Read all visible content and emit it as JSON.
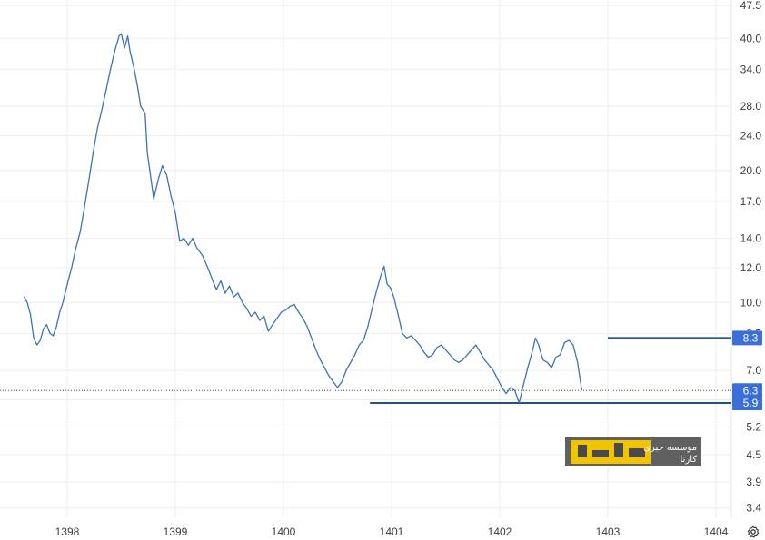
{
  "chart_data": {
    "type": "line",
    "y_scale": "log",
    "ylim": [
      3.3,
      48
    ],
    "y_ticks": [
      "47.5",
      "40.0",
      "34.0",
      "28.0",
      "24.0",
      "20.0",
      "17.0",
      "14.0",
      "12.0",
      "10.0",
      "8.5",
      "7.0",
      "6.0",
      "5.2",
      "4.5",
      "3.9",
      "3.4"
    ],
    "x_ticks": [
      "1398",
      "1399",
      "1400",
      "1401",
      "1402",
      "1403",
      "1404"
    ],
    "x_range": [
      1397.6,
      1404.1
    ],
    "grid": true,
    "series": [
      {
        "color": "#3d72b4",
        "points": [
          [
            1397.6,
            10.3
          ],
          [
            1397.63,
            10.0
          ],
          [
            1397.66,
            9.4
          ],
          [
            1397.69,
            8.3
          ],
          [
            1397.72,
            8.0
          ],
          [
            1397.75,
            8.2
          ],
          [
            1397.78,
            8.7
          ],
          [
            1397.81,
            8.9
          ],
          [
            1397.84,
            8.5
          ],
          [
            1397.87,
            8.4
          ],
          [
            1397.9,
            8.8
          ],
          [
            1397.93,
            9.5
          ],
          [
            1397.96,
            10.0
          ],
          [
            1398.0,
            11.0
          ],
          [
            1398.04,
            12.0
          ],
          [
            1398.08,
            13.3
          ],
          [
            1398.12,
            14.5
          ],
          [
            1398.16,
            16.5
          ],
          [
            1398.2,
            19.0
          ],
          [
            1398.24,
            22.0
          ],
          [
            1398.28,
            25.0
          ],
          [
            1398.32,
            27.5
          ],
          [
            1398.36,
            30.5
          ],
          [
            1398.4,
            34.0
          ],
          [
            1398.44,
            37.5
          ],
          [
            1398.48,
            40.5
          ],
          [
            1398.5,
            41.0
          ],
          [
            1398.53,
            38.0
          ],
          [
            1398.56,
            40.5
          ],
          [
            1398.58,
            37.5
          ],
          [
            1398.62,
            34.0
          ],
          [
            1398.65,
            31.0
          ],
          [
            1398.68,
            28.0
          ],
          [
            1398.72,
            27.0
          ],
          [
            1398.74,
            22.0
          ],
          [
            1398.77,
            19.5
          ],
          [
            1398.8,
            17.2
          ],
          [
            1398.84,
            19.0
          ],
          [
            1398.88,
            20.5
          ],
          [
            1398.92,
            19.5
          ],
          [
            1398.96,
            17.5
          ],
          [
            1399.0,
            16.0
          ],
          [
            1399.04,
            13.8
          ],
          [
            1399.08,
            14.0
          ],
          [
            1399.12,
            13.5
          ],
          [
            1399.16,
            14.0
          ],
          [
            1399.2,
            13.3
          ],
          [
            1399.25,
            12.8
          ],
          [
            1399.3,
            12.0
          ],
          [
            1399.34,
            11.3
          ],
          [
            1399.38,
            10.7
          ],
          [
            1399.42,
            11.2
          ],
          [
            1399.46,
            10.5
          ],
          [
            1399.5,
            10.9
          ],
          [
            1399.54,
            10.3
          ],
          [
            1399.58,
            10.5
          ],
          [
            1399.62,
            10.0
          ],
          [
            1399.66,
            9.7
          ],
          [
            1399.7,
            9.3
          ],
          [
            1399.74,
            9.5
          ],
          [
            1399.78,
            9.1
          ],
          [
            1399.82,
            9.3
          ],
          [
            1399.86,
            8.6
          ],
          [
            1399.9,
            8.9
          ],
          [
            1399.94,
            9.2
          ],
          [
            1399.98,
            9.5
          ],
          [
            1400.02,
            9.6
          ],
          [
            1400.06,
            9.8
          ],
          [
            1400.1,
            9.9
          ],
          [
            1400.14,
            9.5
          ],
          [
            1400.18,
            9.2
          ],
          [
            1400.22,
            8.8
          ],
          [
            1400.26,
            8.3
          ],
          [
            1400.3,
            7.8
          ],
          [
            1400.34,
            7.4
          ],
          [
            1400.38,
            7.1
          ],
          [
            1400.42,
            6.8
          ],
          [
            1400.46,
            6.6
          ],
          [
            1400.5,
            6.4
          ],
          [
            1400.54,
            6.6
          ],
          [
            1400.58,
            7.0
          ],
          [
            1400.62,
            7.3
          ],
          [
            1400.66,
            7.6
          ],
          [
            1400.7,
            8.0
          ],
          [
            1400.74,
            8.2
          ],
          [
            1400.78,
            8.8
          ],
          [
            1400.82,
            9.7
          ],
          [
            1400.86,
            10.6
          ],
          [
            1400.9,
            11.5
          ],
          [
            1400.93,
            12.1
          ],
          [
            1400.96,
            11.0
          ],
          [
            1400.99,
            10.8
          ],
          [
            1401.02,
            10.3
          ],
          [
            1401.06,
            9.4
          ],
          [
            1401.1,
            8.5
          ],
          [
            1401.14,
            8.3
          ],
          [
            1401.18,
            8.4
          ],
          [
            1401.22,
            8.2
          ],
          [
            1401.26,
            8.0
          ],
          [
            1401.3,
            7.7
          ],
          [
            1401.34,
            7.5
          ],
          [
            1401.38,
            7.6
          ],
          [
            1401.42,
            7.9
          ],
          [
            1401.46,
            8.0
          ],
          [
            1401.5,
            7.8
          ],
          [
            1401.54,
            7.6
          ],
          [
            1401.58,
            7.4
          ],
          [
            1401.62,
            7.3
          ],
          [
            1401.66,
            7.4
          ],
          [
            1401.7,
            7.6
          ],
          [
            1401.74,
            7.8
          ],
          [
            1401.78,
            8.0
          ],
          [
            1401.82,
            7.7
          ],
          [
            1401.86,
            7.4
          ],
          [
            1401.9,
            7.2
          ],
          [
            1401.94,
            7.0
          ],
          [
            1401.98,
            6.7
          ],
          [
            1402.02,
            6.4
          ],
          [
            1402.06,
            6.2
          ],
          [
            1402.1,
            6.4
          ],
          [
            1402.14,
            6.3
          ],
          [
            1402.18,
            5.9
          ],
          [
            1402.22,
            6.5
          ],
          [
            1402.26,
            7.1
          ],
          [
            1402.3,
            7.7
          ],
          [
            1402.33,
            8.3
          ],
          [
            1402.36,
            8.0
          ],
          [
            1402.4,
            7.4
          ],
          [
            1402.44,
            7.3
          ],
          [
            1402.48,
            7.1
          ],
          [
            1402.52,
            7.5
          ],
          [
            1402.56,
            7.6
          ],
          [
            1402.6,
            8.1
          ],
          [
            1402.64,
            8.2
          ],
          [
            1402.68,
            8.0
          ],
          [
            1402.72,
            7.3
          ],
          [
            1402.76,
            6.3
          ]
        ]
      }
    ],
    "annotations": {
      "current_price": "6.3",
      "resistance": "8.3",
      "support": "5.9"
    },
    "colors": {
      "line": "#3d72b4",
      "level_line": "#1f4f96",
      "badge": "#3c6ed8"
    }
  },
  "watermark": {
    "line1": "موسسه خبری",
    "line2": "کارنا",
    "logo_text": "کارنا",
    "logo_color": "#f2c300"
  },
  "icons": {
    "settings": "gear-icon"
  }
}
